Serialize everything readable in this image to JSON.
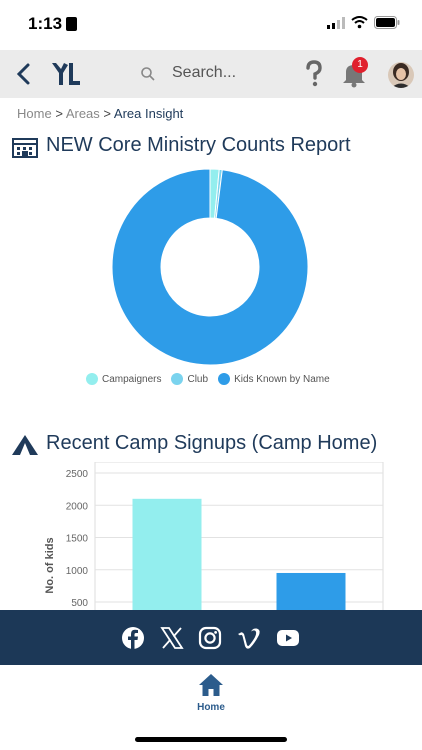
{
  "status": {
    "time": "1:13"
  },
  "nav": {
    "search_placeholder": "Search...",
    "notifications_count": "1"
  },
  "breadcrumb": {
    "home": "Home",
    "areas": "Areas",
    "current": "Area Insight",
    "separator": ">"
  },
  "report1": {
    "title": "NEW Core Ministry Counts Report",
    "chart_data": {
      "type": "pie",
      "categories": [
        "Campaigners",
        "Club",
        "Kids Known by Name"
      ],
      "values": [
        1.5,
        0.5,
        98.0
      ],
      "colors": [
        "#93eeee",
        "#7ad3ee",
        "#2e9ce8"
      ],
      "legend": "bottom"
    }
  },
  "report2": {
    "title": "Recent Camp Signups (Camp Home)",
    "chart_data": {
      "type": "bar",
      "categories": [
        "",
        ""
      ],
      "values": [
        2100,
        950
      ],
      "colors": [
        "#93eeee",
        "#2e9ce8"
      ],
      "ylabel": "No. of kids",
      "ylim": [
        500,
        2500
      ],
      "yticks": [
        "2500",
        "2000",
        "1500",
        "1000",
        "500"
      ],
      "grid": true
    }
  },
  "footer": {
    "social": [
      "facebook-icon",
      "x-icon",
      "instagram-icon",
      "vimeo-icon",
      "youtube-icon"
    ]
  },
  "tabbar": {
    "home_label": "Home"
  },
  "colors": {
    "navy": "#1c3857",
    "accent": "#2e9ce8",
    "badge": "#e0202d"
  }
}
